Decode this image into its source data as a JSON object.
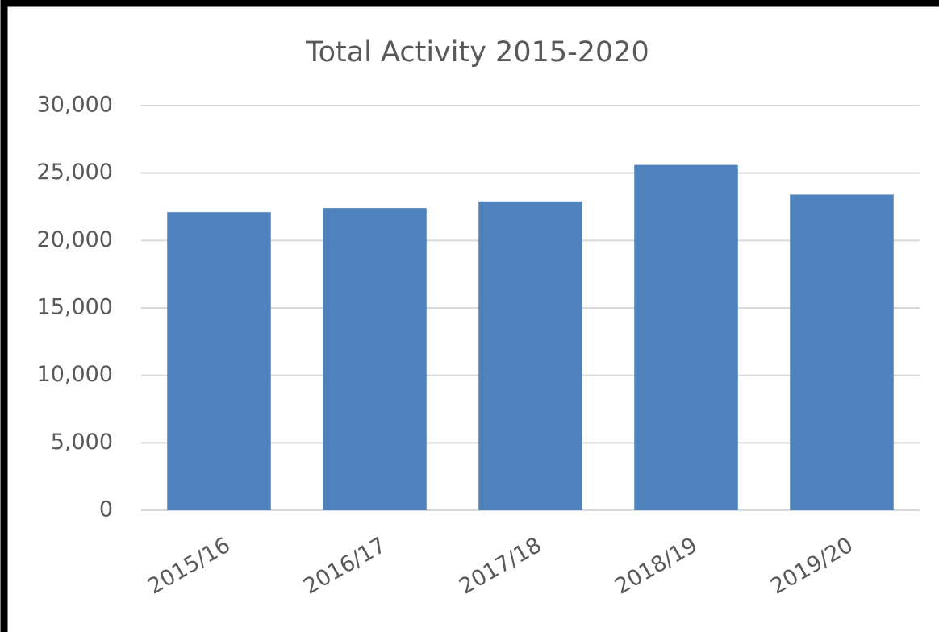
{
  "chart_data": {
    "type": "bar",
    "title": "Total Activity 2015-2020",
    "categories": [
      "2015/16",
      "2016/17",
      "2017/18",
      "2018/19",
      "2019/20"
    ],
    "values": [
      22100,
      22400,
      22900,
      25600,
      23400
    ],
    "color": "#4f81bd",
    "ylim": [
      0,
      30000
    ],
    "yticks": [
      0,
      {
        "value": 5000,
        "label": "5,000"
      },
      {
        "value": 10000,
        "label": "10,000"
      },
      {
        "value": 15000,
        "label": "15,000"
      },
      {
        "value": 20000,
        "label": "20,000"
      },
      {
        "value": 25000,
        "label": "25,000"
      },
      {
        "value": 30000,
        "label": "30,000"
      }
    ],
    "grid": true
  }
}
